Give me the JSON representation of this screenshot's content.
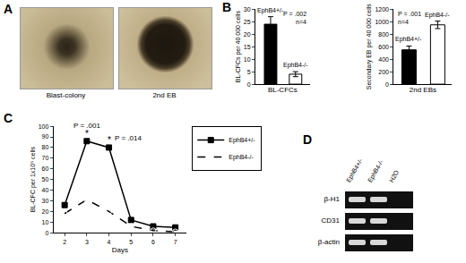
{
  "panel_labels": [
    "A",
    "B",
    "C",
    "D"
  ],
  "panels": {
    "A": {
      "images": [
        {
          "caption": "Blast-colony"
        },
        {
          "caption": "2nd EB"
        }
      ]
    },
    "D": {
      "lanes": [
        "EphB4+/-",
        "EphB4-/-",
        "H2O"
      ],
      "rows": [
        {
          "name": "β-H1",
          "bands": [
            true,
            true,
            false
          ]
        },
        {
          "name": "CD31",
          "bands": [
            true,
            true,
            false
          ]
        },
        {
          "name": "β-actin",
          "bands": [
            true,
            true,
            false
          ]
        }
      ]
    }
  },
  "chart_data": [
    {
      "type": "bar",
      "xlabel": "BL-CFCs",
      "ylabel": "BL-CFCs per 40 000 cells",
      "categories": [
        "EphB4+/-",
        "EphB4-/-"
      ],
      "values": [
        24,
        4
      ],
      "errors": [
        3,
        1
      ],
      "colors": [
        "#000000",
        "#ffffff"
      ],
      "ylim": [
        0,
        30
      ],
      "yticks": [
        0,
        5,
        10,
        15,
        20,
        25,
        30
      ],
      "grid": false,
      "tick_labels": "y",
      "annotations": [
        {
          "text": "P = .002"
        },
        {
          "text": "n=4"
        }
      ]
    },
    {
      "type": "bar",
      "xlabel": "2nd EBs",
      "ylabel": "Secondary EB per 40 000 cells",
      "categories": [
        "EphB4+/-",
        "EphB4-/-"
      ],
      "values": [
        550,
        950
      ],
      "errors": [
        60,
        60
      ],
      "colors": [
        "#000000",
        "#ffffff"
      ],
      "ylim": [
        0,
        1200
      ],
      "yticks": [
        0,
        200,
        400,
        600,
        800,
        1000,
        1200
      ],
      "grid": false,
      "tick_labels": "y",
      "annotations": [
        {
          "text": "P = .001"
        },
        {
          "text": "n=4"
        }
      ]
    },
    {
      "type": "line",
      "xlabel": "Days",
      "ylabel": "BL-CFC per 1x10⁵ cells",
      "x": [
        2,
        3,
        4,
        5,
        6,
        7
      ],
      "series": [
        {
          "name": "EphB4+/-",
          "color": "#000000",
          "marker": "square",
          "line_style": "solid",
          "values": [
            26,
            86,
            80,
            12,
            6,
            5
          ]
        },
        {
          "name": "EphB4-/-",
          "color": "#000000",
          "marker": "circle-open",
          "line_style": "dash",
          "values": [
            18,
            31,
            20,
            6,
            2,
            1
          ]
        }
      ],
      "xlim": [
        1.5,
        7.5
      ],
      "xticks": [
        2,
        3,
        4,
        5,
        6,
        7
      ],
      "ylim": [
        0,
        100
      ],
      "yticks": [
        0,
        10,
        20,
        30,
        40,
        50,
        60,
        70,
        80,
        90,
        100
      ],
      "grid": false,
      "legend": "right",
      "annotations": [
        {
          "text": "P = .001",
          "x": 3
        },
        {
          "text": "*",
          "x": 3
        },
        {
          "text": "P = .014",
          "x": 4
        },
        {
          "text": "*",
          "x": 4
        }
      ]
    }
  ]
}
